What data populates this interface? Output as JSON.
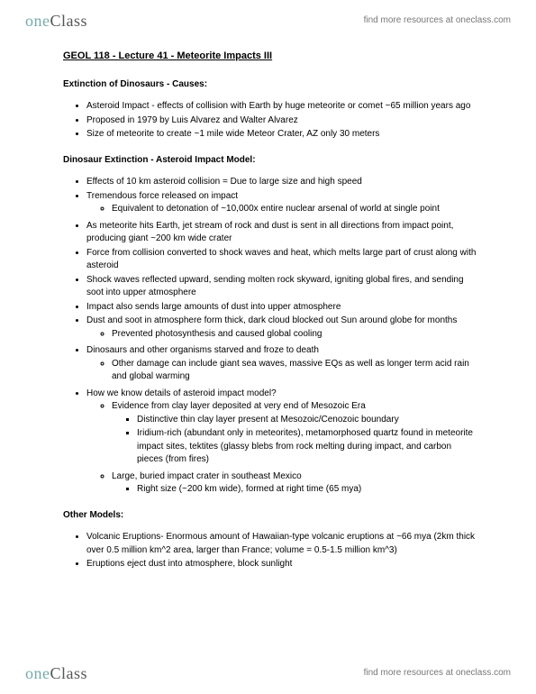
{
  "brand": {
    "one": "one",
    "class": "Class",
    "tagline": "find more resources at oneclass.com"
  },
  "title": "GEOL 118 - Lecture 41 - Meteorite Impacts III",
  "s1": {
    "head": "Extinction of Dinosaurs - Causes:",
    "b1": "Asteroid Impact - effects of collision with Earth by huge meteorite or comet ~65 million years ago",
    "b2": "Proposed in 1979 by Luis Alvarez and Walter Alvarez",
    "b3": "Size of meteorite to create  ~1 mile wide Meteor Crater, AZ only 30 meters"
  },
  "s2": {
    "head": "Dinosaur Extinction - Asteroid Impact Model:",
    "b1": "Effects of 10 km asteroid collision = Due to large size and high speed",
    "b2": "Tremendous force released on impact",
    "b2a": "Equivalent to detonation of ~10,000x entire nuclear arsenal of world at single point",
    "b3": "As meteorite hits Earth, jet stream of rock and dust is sent in all directions from impact point, producing giant ~200 km wide crater",
    "b4": "Force from collision converted to shock waves and heat, which melts large part of crust along with asteroid",
    "b5": "Shock waves reflected upward, sending molten rock skyward, igniting global fires, and sending soot into upper atmosphere",
    "b6": "Impact also sends large amounts of dust into upper atmosphere",
    "b7": "Dust and soot in atmosphere form thick, dark cloud blocked out Sun around globe for months",
    "b7a": "Prevented photosynthesis and caused global cooling",
    "b8": "Dinosaurs and other organisms starved and froze to death",
    "b8a": "Other damage can include giant sea waves, massive EQs as well as longer term acid rain and global warming",
    "b9": "How we know details of asteroid impact model?",
    "b9a": "Evidence from clay layer deposited at very end of Mesozoic Era",
    "b9a1": "Distinctive thin clay layer present at Mesozoic/Cenozoic boundary",
    "b9a2": "Iridium-rich (abundant only in meteorites), metamorphosed quartz found in meteorite impact sites, tektites (glassy blebs from rock melting during impact, and carbon pieces (from fires)",
    "b9b": "Large, buried impact crater in southeast Mexico",
    "b9b1": "Right size (~200 km wide), formed at right time (65 mya)"
  },
  "s3": {
    "head": "Other Models:",
    "b1": "Volcanic Eruptions- Enormous amount of Hawaiian-type volcanic eruptions at ~66 mya (2km thick over 0.5 million km^2 area, larger than France; volume = 0.5-1.5 million km^3)",
    "b2": "Eruptions eject dust into atmosphere, block sunlight"
  }
}
